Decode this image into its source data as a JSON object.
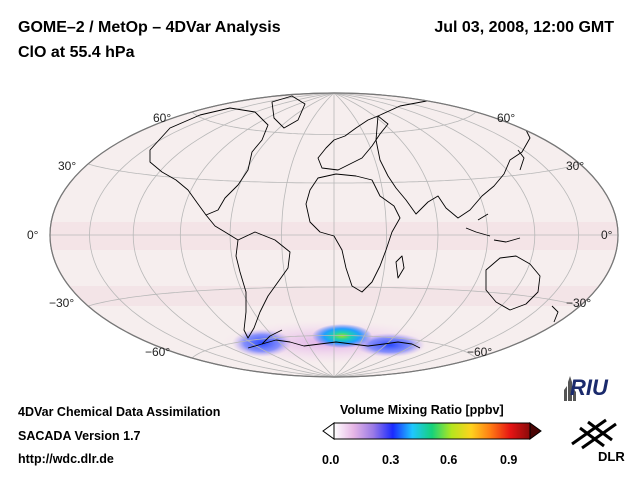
{
  "header": {
    "title": "GOME–2 / MetOp – 4DVar Analysis",
    "subtitle": "ClO at 55.4 hPa",
    "datetime": "Jul 03, 2008, 12:00 GMT"
  },
  "map": {
    "projection": "Hammer-Aitoff (global)",
    "lat_labels_left": [
      "60°",
      "30°",
      "0°",
      "−30°",
      "−60°"
    ],
    "lat_labels_right": [
      "60°",
      "30°",
      "0°",
      "−30°",
      "−60°"
    ],
    "ocean_color": "#f6eeee",
    "grid_color": "#b8b8b8",
    "coast_color": "#000000"
  },
  "footer": {
    "line1": "4DVar Chemical Data Assimilation",
    "line2": "SACADA Version 1.7",
    "line3": "http://wdc.dlr.de"
  },
  "colorbar": {
    "title": "Volume Mixing Ratio [ppbv]",
    "ticks": [
      "0.0",
      "0.3",
      "0.6",
      "0.9"
    ],
    "colors": [
      "#ffffff",
      "#e6b6e6",
      "#9a7ae6",
      "#1a2aff",
      "#1fc7ff",
      "#16d27a",
      "#b4e61e",
      "#ffd21e",
      "#ff7a14",
      "#e61414",
      "#8a0a0a"
    ]
  },
  "logos": {
    "riu": "RIU",
    "dlr": "DLR"
  }
}
